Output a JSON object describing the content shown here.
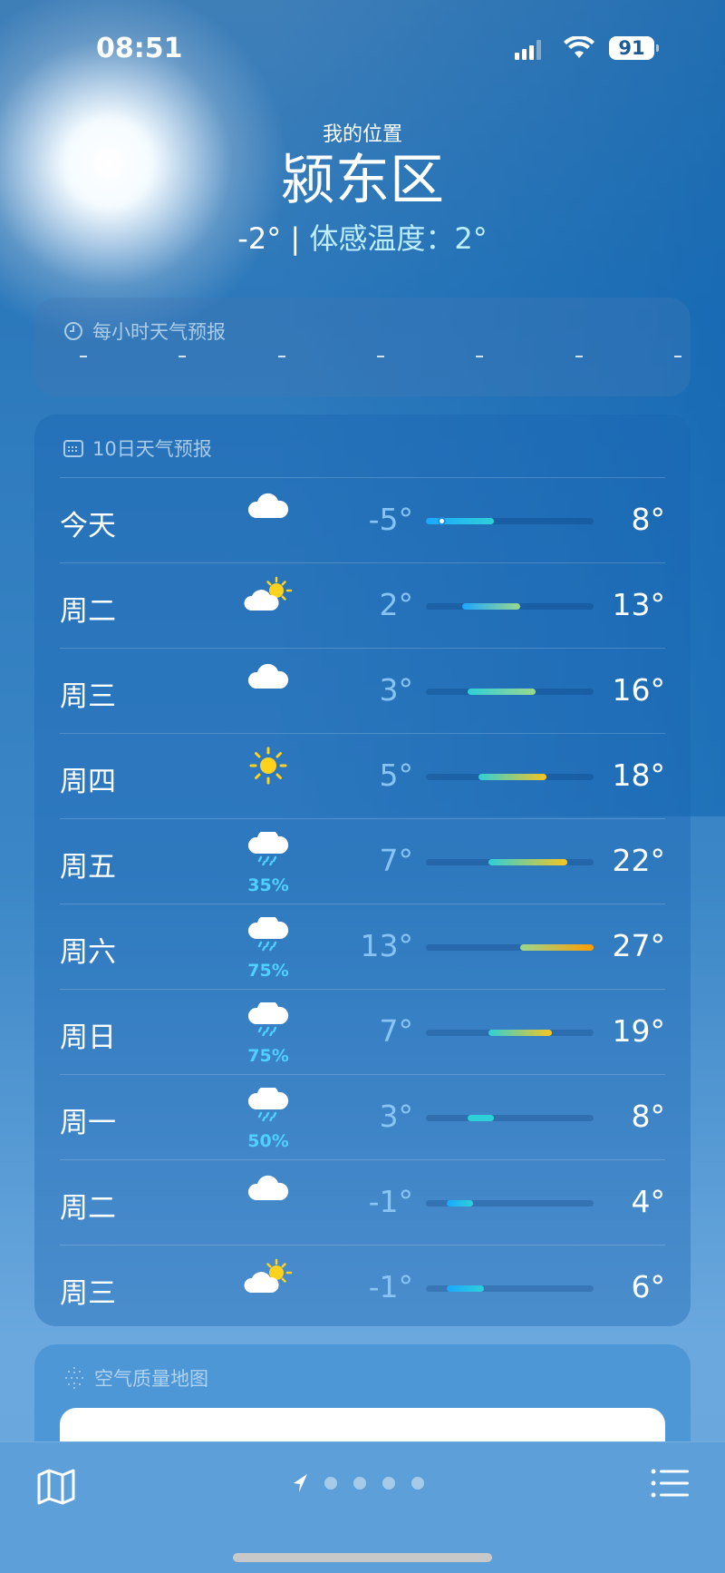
{
  "status_bar": {
    "time": "08:51",
    "battery": "91",
    "icons": [
      "cellular-signal-icon",
      "wifi-icon",
      "battery-icon"
    ]
  },
  "header": {
    "location_label": "我的位置",
    "city": "颍东区",
    "current_temp": "-2°",
    "separator": "|",
    "feels_like": "体感温度：2°"
  },
  "hourly": {
    "title": "每小时天气预报",
    "icon": "clock-icon"
  },
  "ten_day": {
    "title": "10日天气预报",
    "icon": "calendar-icon",
    "range_min": -5,
    "range_max": 27,
    "current_temp_value": -2,
    "colors": {
      "cold": "#1aa8ff",
      "cool": "#2ed0d8",
      "mild": "#9ad88e",
      "warm": "#f7c520",
      "hot": "#ff9d00"
    },
    "days": [
      {
        "day": "今天",
        "icon": "cloud-icon",
        "pop": "",
        "low": "-5°",
        "high": "8°",
        "low_v": -5,
        "high_v": 8
      },
      {
        "day": "周二",
        "icon": "partly-sunny-icon",
        "pop": "",
        "low": "2°",
        "high": "13°",
        "low_v": 2,
        "high_v": 13
      },
      {
        "day": "周三",
        "icon": "cloud-icon",
        "pop": "",
        "low": "3°",
        "high": "16°",
        "low_v": 3,
        "high_v": 16
      },
      {
        "day": "周四",
        "icon": "sun-icon",
        "pop": "",
        "low": "5°",
        "high": "18°",
        "low_v": 5,
        "high_v": 18
      },
      {
        "day": "周五",
        "icon": "rain-icon",
        "pop": "35%",
        "low": "7°",
        "high": "22°",
        "low_v": 7,
        "high_v": 22
      },
      {
        "day": "周六",
        "icon": "rain-icon",
        "pop": "75%",
        "low": "13°",
        "high": "27°",
        "low_v": 13,
        "high_v": 27
      },
      {
        "day": "周日",
        "icon": "rain-icon",
        "pop": "75%",
        "low": "7°",
        "high": "19°",
        "low_v": 7,
        "high_v": 19
      },
      {
        "day": "周一",
        "icon": "rain-icon",
        "pop": "50%",
        "low": "3°",
        "high": "8°",
        "low_v": 3,
        "high_v": 8
      },
      {
        "day": "周二",
        "icon": "cloud-icon",
        "pop": "",
        "low": "-1°",
        "high": "4°",
        "low_v": -1,
        "high_v": 4
      },
      {
        "day": "周三",
        "icon": "partly-sunny-icon",
        "pop": "",
        "low": "-1°",
        "high": "6°",
        "low_v": -1,
        "high_v": 6
      }
    ]
  },
  "air_quality": {
    "title": "空气质量地图",
    "icon": "air-quality-icon"
  },
  "bottom_bar": {
    "left_icon": "map-icon",
    "right_icon": "list-icon",
    "page_count": 5,
    "current_page": 1
  }
}
